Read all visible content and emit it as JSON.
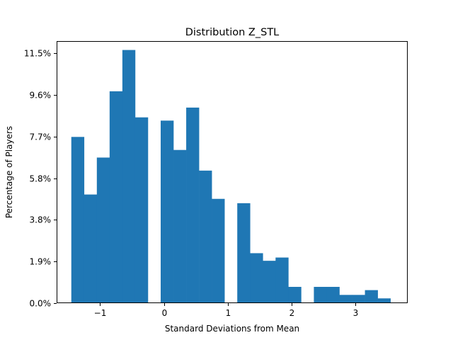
{
  "chart_data": {
    "type": "bar",
    "title": "Distribution Z_STL",
    "xlabel": "Standard Deviations from Mean",
    "ylabel": "Percentage of Players",
    "xlim": [
      -1.68,
      3.82
    ],
    "ylim": [
      0,
      12.06
    ],
    "xticks": [
      {
        "value": -1,
        "label": "−1"
      },
      {
        "value": 0,
        "label": "0"
      },
      {
        "value": 1,
        "label": "1"
      },
      {
        "value": 2,
        "label": "2"
      },
      {
        "value": 3,
        "label": "3"
      }
    ],
    "yticks": [
      {
        "value": 0.0,
        "label": "0.0%"
      },
      {
        "value": 1.92,
        "label": "1.9%"
      },
      {
        "value": 3.83,
        "label": "3.8%"
      },
      {
        "value": 5.75,
        "label": "5.8%"
      },
      {
        "value": 7.67,
        "label": "7.7%"
      },
      {
        "value": 9.58,
        "label": "9.6%"
      },
      {
        "value": 11.5,
        "label": "11.5%"
      }
    ],
    "bin_width": 0.2,
    "bins": [
      {
        "x0": -1.45,
        "value": 7.65
      },
      {
        "x0": -1.25,
        "value": 5.0
      },
      {
        "x0": -1.05,
        "value": 6.7
      },
      {
        "x0": -0.85,
        "value": 9.75
      },
      {
        "x0": -0.65,
        "value": 11.65
      },
      {
        "x0": -0.45,
        "value": 8.55
      },
      {
        "x0": -0.05,
        "value": 8.4
      },
      {
        "x0": 0.15,
        "value": 7.05
      },
      {
        "x0": 0.35,
        "value": 9.0
      },
      {
        "x0": 0.55,
        "value": 6.1
      },
      {
        "x0": 0.75,
        "value": 4.8
      },
      {
        "x0": 1.15,
        "value": 4.6
      },
      {
        "x0": 1.35,
        "value": 2.3
      },
      {
        "x0": 1.55,
        "value": 1.95
      },
      {
        "x0": 1.75,
        "value": 2.1
      },
      {
        "x0": 1.95,
        "value": 0.75
      },
      {
        "x0": 2.35,
        "value": 0.75
      },
      {
        "x0": 2.55,
        "value": 0.75
      },
      {
        "x0": 2.75,
        "value": 0.38
      },
      {
        "x0": 2.95,
        "value": 0.38
      },
      {
        "x0": 3.15,
        "value": 0.6
      },
      {
        "x0": 3.35,
        "value": 0.22
      }
    ],
    "bar_color": "#1f77b4",
    "grid": false,
    "legend": "none"
  }
}
